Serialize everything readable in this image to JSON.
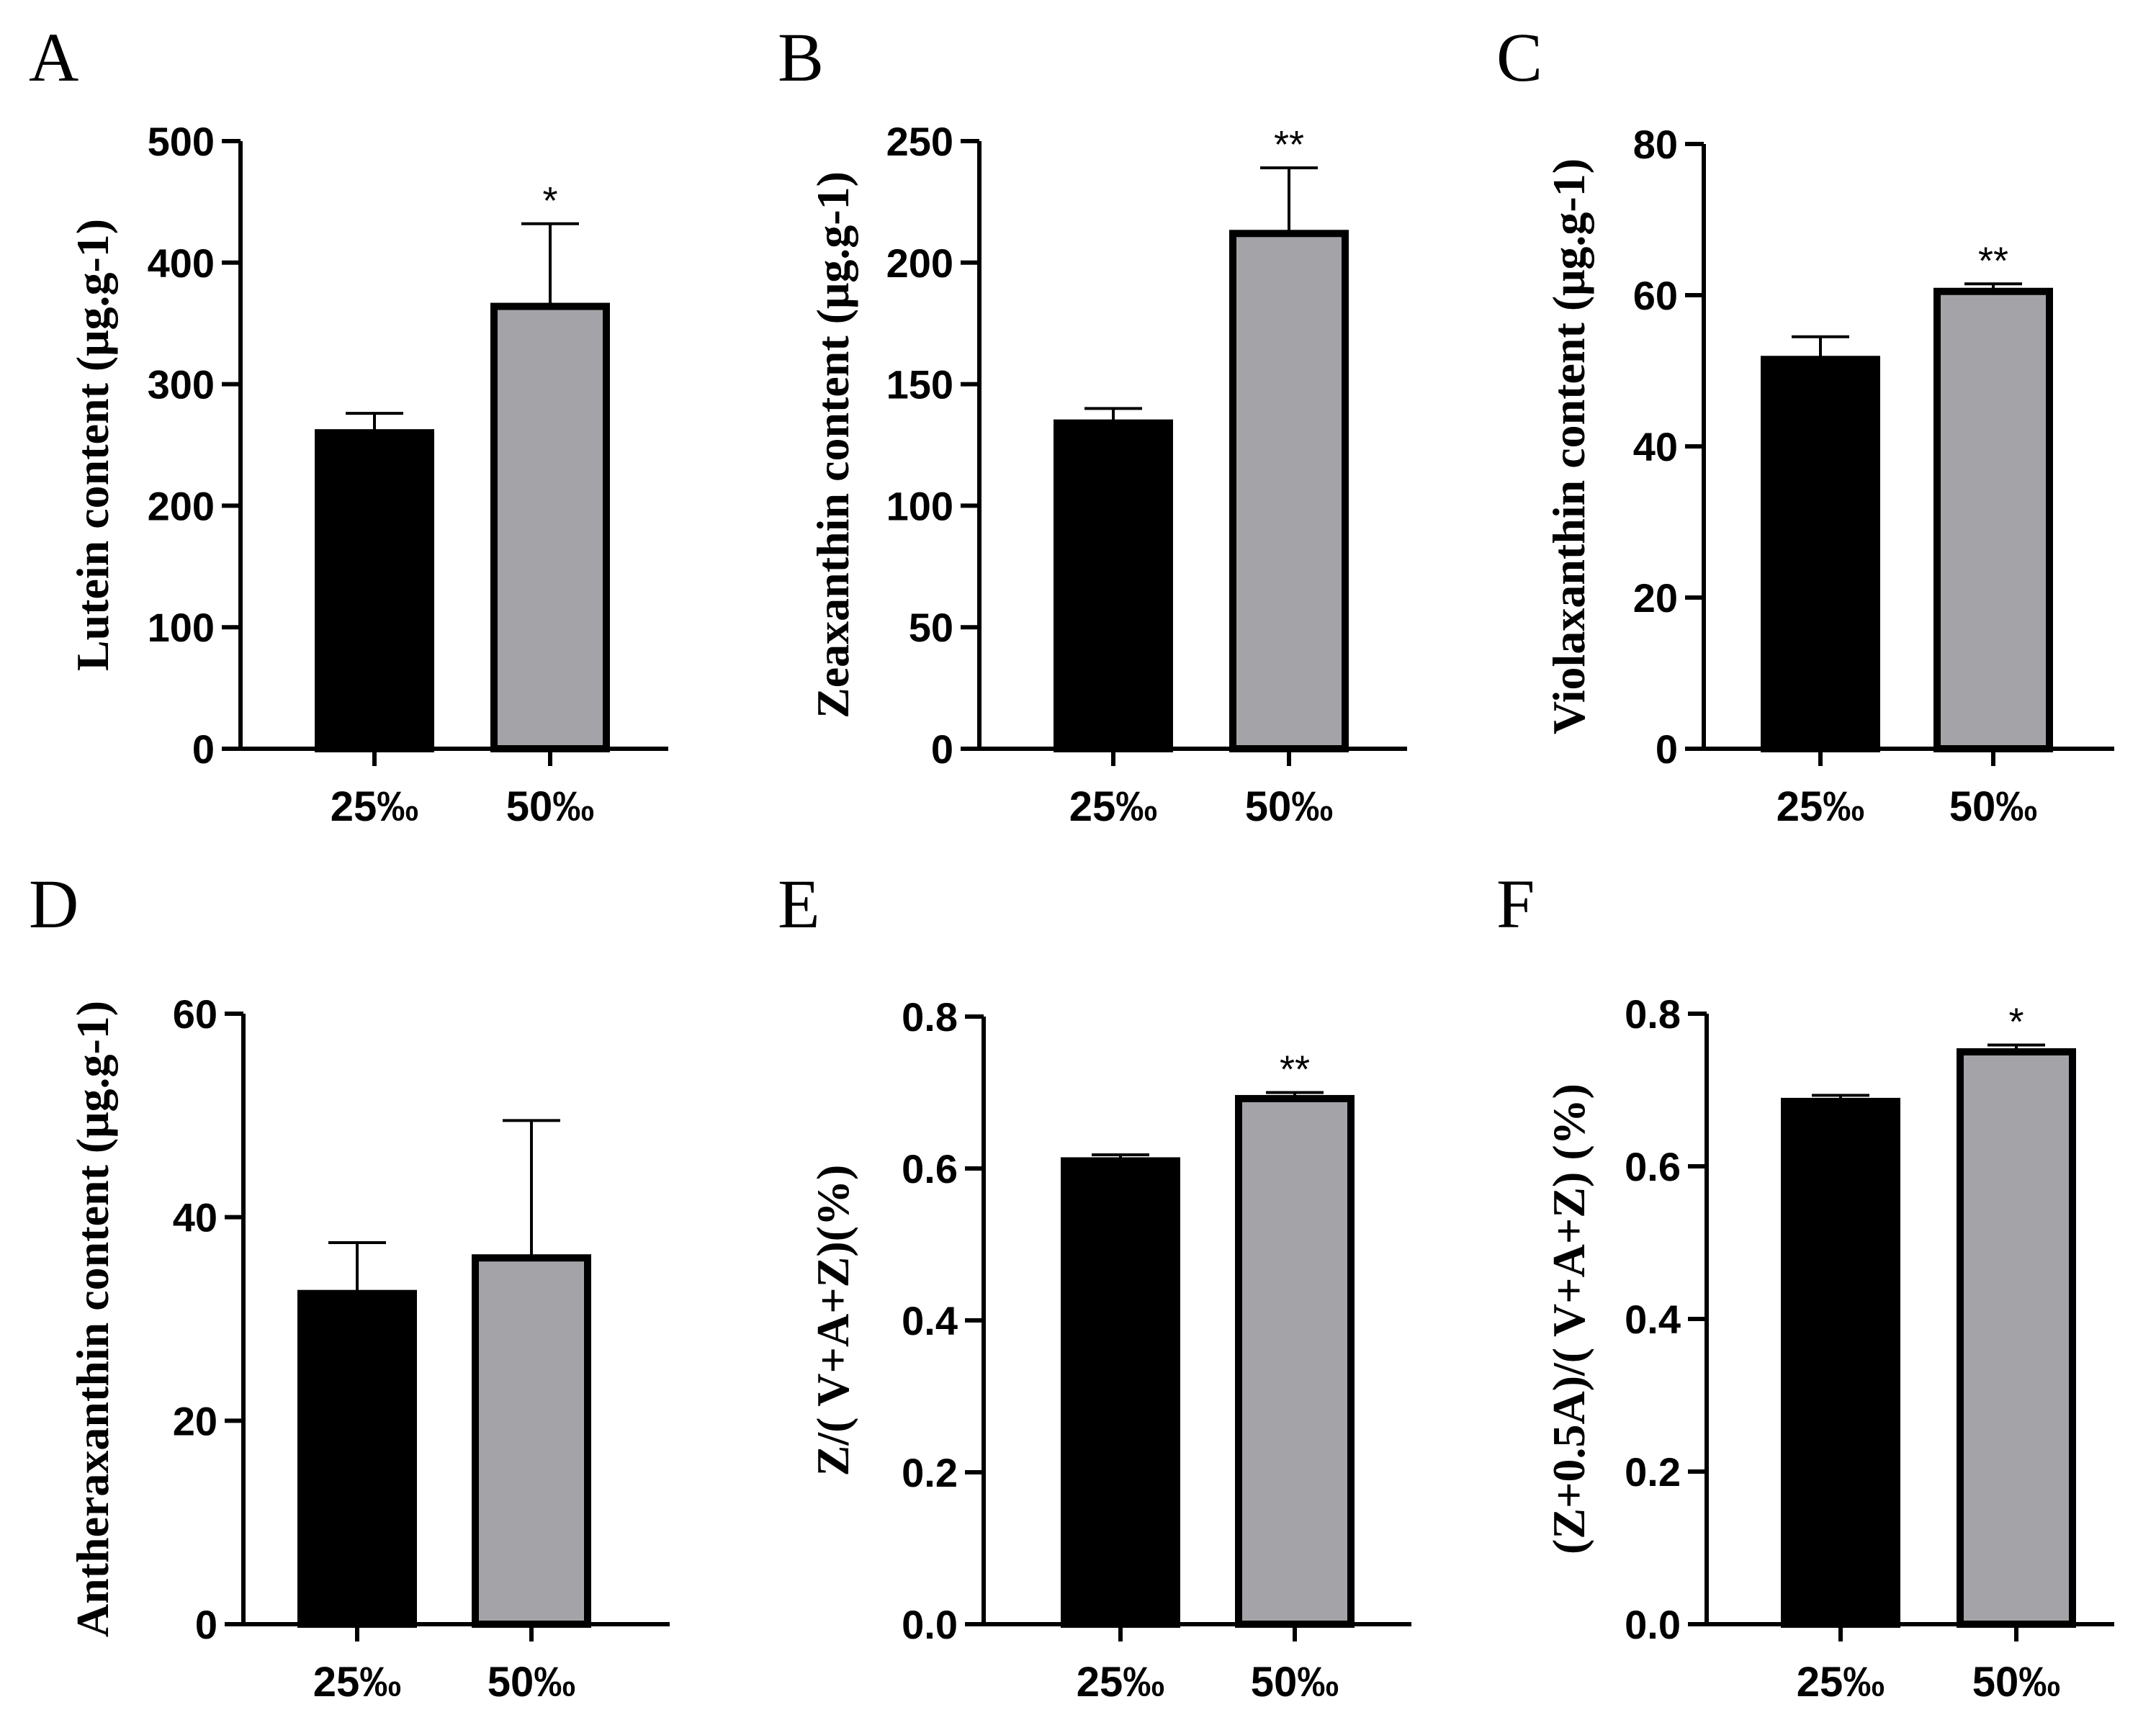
{
  "colors": {
    "bar_25": "#000000",
    "bar_50": "#a3a3a8",
    "outline": "#000000"
  },
  "chart_data": [
    {
      "panel": "A",
      "type": "bar",
      "categories": [
        "25‰",
        "50‰"
      ],
      "values": [
        260,
        364
      ],
      "errors": [
        16,
        68
      ],
      "significance": [
        "",
        "*"
      ],
      "ylabel": "Lutein  content  (μg.g-1)",
      "ylim": [
        0,
        500
      ],
      "yticks": [
        0,
        100,
        200,
        300,
        400,
        500
      ],
      "ytick_labels": [
        "0",
        "100",
        "200",
        "300",
        "400",
        "500"
      ]
    },
    {
      "panel": "B",
      "type": "bar",
      "categories": [
        "25‰",
        "50‰"
      ],
      "values": [
        134,
        212
      ],
      "errors": [
        6,
        27
      ],
      "significance": [
        "",
        "**"
      ],
      "ylabel": "Zeaxanthin content  (μg.g-1)",
      "ylim": [
        0,
        250
      ],
      "yticks": [
        0,
        50,
        100,
        150,
        200,
        250
      ],
      "ytick_labels": [
        "0",
        "50",
        "100",
        "150",
        "200",
        "250"
      ]
    },
    {
      "panel": "C",
      "type": "bar",
      "categories": [
        "25‰",
        "50‰"
      ],
      "values": [
        51.5,
        60.5
      ],
      "errors": [
        3,
        1
      ],
      "significance": [
        "",
        "**"
      ],
      "ylabel": "Violaxanthin content  (μg.g-1)",
      "ylim": [
        0,
        80
      ],
      "yticks": [
        0,
        20,
        40,
        60,
        80
      ],
      "ytick_labels": [
        "0",
        "20",
        "40",
        "60",
        "80"
      ]
    },
    {
      "panel": "D",
      "type": "bar",
      "categories": [
        "25‰",
        "50‰"
      ],
      "values": [
        32.5,
        36
      ],
      "errors": [
        5,
        13.5
      ],
      "significance": [
        "",
        ""
      ],
      "ylabel": "Antheraxanthin content  (μg.g-1)",
      "ylim": [
        0,
        60
      ],
      "yticks": [
        0,
        20,
        40,
        60
      ],
      "ytick_labels": [
        "0",
        "20",
        "40",
        "60"
      ]
    },
    {
      "panel": "E",
      "type": "bar",
      "categories": [
        "25‰",
        "50‰"
      ],
      "values": [
        0.61,
        0.692
      ],
      "errors": [
        0.008,
        0.008
      ],
      "significance": [
        "",
        "**"
      ],
      "ylabel": "Z/( V+A+Z)(%)",
      "ylim": [
        0,
        0.8
      ],
      "yticks": [
        0,
        0.2,
        0.4,
        0.6,
        0.8
      ],
      "ytick_labels": [
        "0.0",
        "0.2",
        "0.4",
        "0.6",
        "0.8"
      ]
    },
    {
      "panel": "F",
      "type": "bar",
      "categories": [
        "25‰",
        "50‰"
      ],
      "values": [
        0.685,
        0.75
      ],
      "errors": [
        0.008,
        0.009
      ],
      "significance": [
        "",
        "*"
      ],
      "ylabel": "(Z+0.5A)/( V+A+Z) (%)",
      "ylim": [
        0,
        0.8
      ],
      "yticks": [
        0,
        0.2,
        0.4,
        0.6,
        0.8
      ],
      "ytick_labels": [
        "0.0",
        "0.2",
        "0.4",
        "0.6",
        "0.8"
      ]
    }
  ]
}
